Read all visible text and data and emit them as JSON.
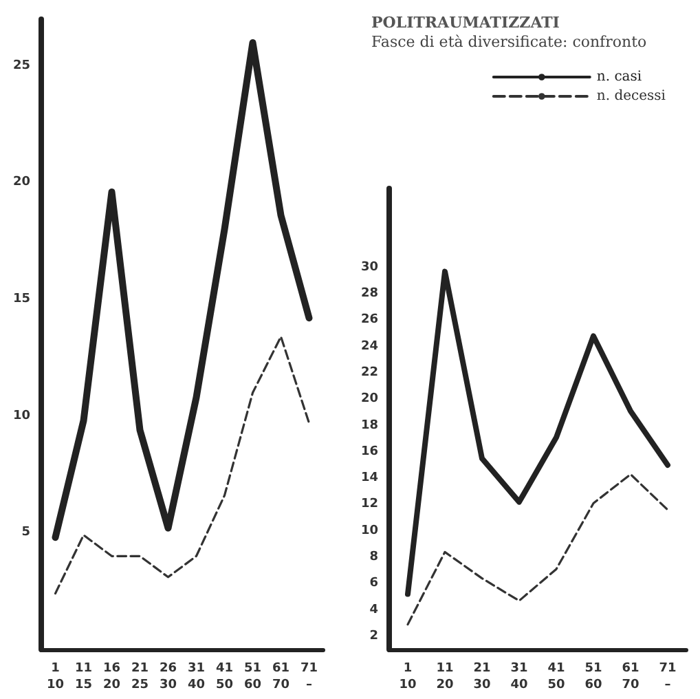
{
  "chart_data": [
    {
      "type": "line",
      "categories": [
        "1\n10",
        "11\n15",
        "16\n20",
        "21\n25",
        "26\n30",
        "31\n40",
        "41\n50",
        "51\n60",
        "61\n70",
        "71\n–"
      ],
      "series": [
        {
          "color": "#222222",
          "line_style": "solid",
          "values": [
            4.8,
            9.8,
            19.6,
            9.4,
            5.2,
            10.8,
            18,
            26,
            18.6,
            14.2
          ]
        },
        {
          "color": "#333333",
          "line_style": "dashed",
          "values": [
            2.4,
            4.9,
            4.0,
            4.0,
            3.1,
            4.0,
            6.6,
            11,
            13.4,
            9.7
          ]
        }
      ],
      "ylim": [
        0,
        27
      ],
      "yticks": [
        5,
        10,
        15,
        20,
        25
      ],
      "grid": false,
      "legend": false,
      "marker": "none"
    },
    {
      "type": "line",
      "title": "POLITRAUMATIZZATI",
      "subtitle": "Fasce di età diversificate: confronto",
      "categories": [
        "1\n10",
        "11\n20",
        "21\n30",
        "31\n40",
        "41\n50",
        "51\n60",
        "61\n70",
        "71\n–"
      ],
      "series": [
        {
          "name": "n. casi",
          "color": "#222222",
          "line_style": "solid",
          "values": [
            5.2,
            29.7,
            15.5,
            12.2,
            17.1,
            24.8,
            19.1,
            15.0
          ]
        },
        {
          "name": "n. decessi",
          "color": "#333333",
          "line_style": "dashed",
          "values": [
            2.9,
            8.4,
            6.4,
            4.7,
            7.1,
            12.1,
            14.3,
            11.6
          ]
        }
      ],
      "ylim": [
        1,
        36
      ],
      "yticks": [
        2,
        4,
        6,
        8,
        10,
        12,
        14,
        16,
        18,
        20,
        22,
        24,
        26,
        28,
        30
      ],
      "grid": false,
      "legend": "top right",
      "marker": "none"
    }
  ]
}
